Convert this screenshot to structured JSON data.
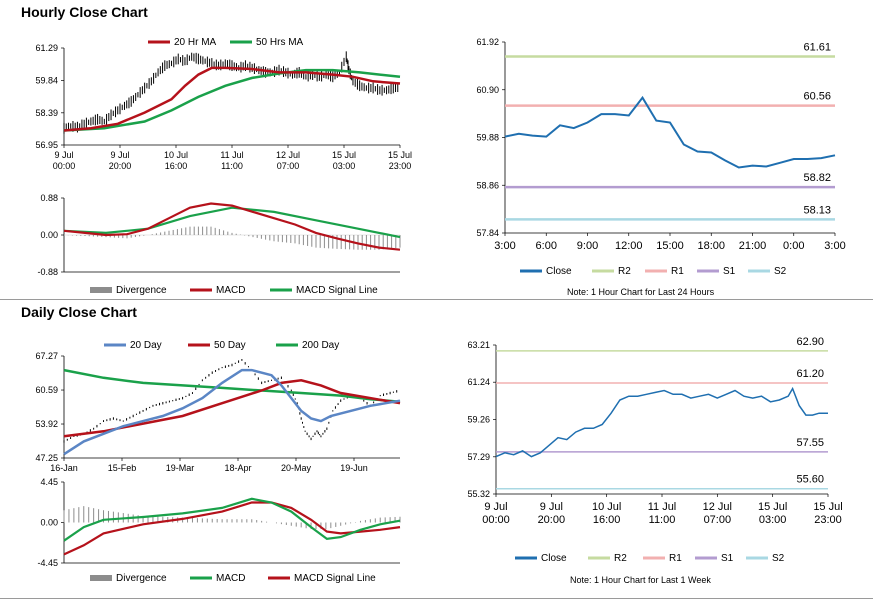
{
  "sections": {
    "hourly_title": "Hourly Close Chart",
    "daily_title": "Daily Close Chart"
  },
  "colors": {
    "ma_short": "#b5121b",
    "ma_long": "#1aa14a",
    "close": "#1f6fb0",
    "ma20_daily": "#5b86c5",
    "r2": "#c6dba0",
    "r1": "#f2b0b0",
    "s1": "#b39cd0",
    "s2": "#a9d8e3",
    "divergence": "#8c8c8c",
    "price": "#000000"
  },
  "chart_data": [
    {
      "id": "hourly-price",
      "type": "line",
      "legend": [
        "20 Hr MA",
        "50 Hrs MA"
      ],
      "legend_position": "top",
      "y_ticks": [
        "61.29",
        "59.84",
        "58.39",
        "56.95"
      ],
      "ylim": [
        56.95,
        61.29
      ],
      "x_ticks": [
        [
          "9 Jul",
          "00:00"
        ],
        [
          "9 Jul",
          "20:00"
        ],
        [
          "10 Jul",
          "16:00"
        ],
        [
          "11 Jul",
          "11:00"
        ],
        [
          "12 Jul",
          "07:00"
        ],
        [
          "15 Jul",
          "03:00"
        ],
        [
          "15 Jul",
          "23:00"
        ]
      ],
      "price": [
        [
          0,
          57.7
        ],
        [
          5,
          57.8
        ],
        [
          10,
          57.75
        ],
        [
          15,
          57.9
        ],
        [
          20,
          58.0
        ],
        [
          25,
          58.1
        ],
        [
          30,
          58.0
        ],
        [
          35,
          58.3
        ],
        [
          40,
          58.5
        ],
        [
          45,
          58.7
        ],
        [
          50,
          58.9
        ],
        [
          55,
          59.2
        ],
        [
          60,
          59.5
        ],
        [
          65,
          59.8
        ],
        [
          70,
          60.2
        ],
        [
          75,
          60.5
        ],
        [
          80,
          60.6
        ],
        [
          85,
          60.8
        ],
        [
          90,
          60.7
        ],
        [
          95,
          60.9
        ],
        [
          100,
          60.8
        ],
        [
          105,
          60.7
        ],
        [
          110,
          60.6
        ],
        [
          115,
          60.5
        ],
        [
          120,
          60.6
        ],
        [
          125,
          60.5
        ],
        [
          130,
          60.4
        ],
        [
          135,
          60.5
        ],
        [
          140,
          60.4
        ],
        [
          145,
          60.3
        ],
        [
          150,
          60.2
        ],
        [
          155,
          60.2
        ],
        [
          160,
          60.3
        ],
        [
          165,
          60.2
        ],
        [
          170,
          60.1
        ],
        [
          175,
          60.2
        ],
        [
          180,
          60.0
        ],
        [
          185,
          60.1
        ],
        [
          190,
          60.0
        ],
        [
          195,
          60.1
        ],
        [
          200,
          60.0
        ],
        [
          205,
          60.2
        ],
        [
          210,
          60.9
        ],
        [
          212,
          60.3
        ],
        [
          215,
          59.8
        ],
        [
          220,
          59.6
        ],
        [
          225,
          59.5
        ],
        [
          230,
          59.5
        ],
        [
          235,
          59.4
        ],
        [
          240,
          59.4
        ],
        [
          245,
          59.5
        ],
        [
          250,
          59.5
        ]
      ],
      "ma20": [
        [
          0,
          57.6
        ],
        [
          20,
          57.7
        ],
        [
          40,
          57.9
        ],
        [
          60,
          58.4
        ],
        [
          80,
          59.0
        ],
        [
          90,
          59.6
        ],
        [
          100,
          60.1
        ],
        [
          110,
          60.4
        ],
        [
          120,
          60.4
        ],
        [
          140,
          60.35
        ],
        [
          160,
          60.2
        ],
        [
          180,
          60.2
        ],
        [
          200,
          60.1
        ],
        [
          215,
          60.0
        ],
        [
          230,
          59.8
        ],
        [
          250,
          59.7
        ]
      ],
      "ma50": [
        [
          0,
          57.6
        ],
        [
          30,
          57.7
        ],
        [
          60,
          58.0
        ],
        [
          80,
          58.5
        ],
        [
          100,
          59.1
        ],
        [
          120,
          59.6
        ],
        [
          140,
          59.95
        ],
        [
          160,
          60.15
        ],
        [
          180,
          60.3
        ],
        [
          200,
          60.3
        ],
        [
          220,
          60.2
        ],
        [
          250,
          60.0
        ]
      ]
    },
    {
      "id": "hourly-macd",
      "type": "line",
      "legend": [
        "Divergence",
        "MACD",
        "MACD Signal Line"
      ],
      "legend_position": "bottom",
      "y_ticks": [
        "0.88",
        "0.00",
        "-0.88"
      ],
      "ylim": [
        -0.88,
        0.88
      ],
      "macd": [
        [
          0,
          0.1
        ],
        [
          20,
          0.05
        ],
        [
          40,
          0.0
        ],
        [
          60,
          0.02
        ],
        [
          80,
          0.15
        ],
        [
          100,
          0.4
        ],
        [
          120,
          0.65
        ],
        [
          140,
          0.75
        ],
        [
          160,
          0.7
        ],
        [
          180,
          0.55
        ],
        [
          200,
          0.4
        ],
        [
          220,
          0.25
        ],
        [
          240,
          0.05
        ],
        [
          260,
          -0.08
        ],
        [
          280,
          -0.2
        ],
        [
          300,
          -0.3
        ],
        [
          320,
          -0.35
        ]
      ],
      "signal": [
        [
          0,
          0.1
        ],
        [
          40,
          0.05
        ],
        [
          80,
          0.15
        ],
        [
          120,
          0.45
        ],
        [
          160,
          0.65
        ],
        [
          200,
          0.55
        ],
        [
          240,
          0.35
        ],
        [
          280,
          0.15
        ],
        [
          320,
          -0.05
        ]
      ]
    },
    {
      "id": "hourly-pivot",
      "type": "line",
      "legend": [
        "Close",
        "R2",
        "R1",
        "S1",
        "S2"
      ],
      "legend_position": "bottom",
      "note": "Note: 1 Hour Chart for Last 24 Hours",
      "y_ticks": [
        "61.92",
        "60.90",
        "59.88",
        "58.86",
        "57.84"
      ],
      "ylim": [
        57.84,
        61.92
      ],
      "x_ticks": [
        "3:00",
        "6:00",
        "9:00",
        "12:00",
        "15:00",
        "18:00",
        "21:00",
        "0:00",
        "3:00"
      ],
      "levels": [
        {
          "name": "R2",
          "value": 61.61,
          "label": "61.61"
        },
        {
          "name": "R1",
          "value": 60.56,
          "label": "60.56"
        },
        {
          "name": "S1",
          "value": 58.82,
          "label": "58.82"
        },
        {
          "name": "S2",
          "value": 58.13,
          "label": "58.13"
        }
      ],
      "close": [
        59.9,
        59.96,
        59.92,
        59.9,
        60.14,
        60.08,
        60.2,
        60.38,
        60.38,
        60.35,
        60.73,
        60.24,
        60.2,
        59.73,
        59.58,
        59.56,
        59.39,
        59.24,
        59.28,
        59.26,
        59.34,
        59.42,
        59.42,
        59.44,
        59.5
      ]
    },
    {
      "id": "daily-price",
      "type": "line",
      "legend": [
        "20 Day",
        "50 Day",
        "200 Day"
      ],
      "legend_position": "top",
      "y_ticks": [
        "67.27",
        "60.59",
        "53.92",
        "47.25"
      ],
      "ylim": [
        47.25,
        67.27
      ],
      "x_ticks": [
        "16-Jan",
        "15-Feb",
        "19-Mar",
        "18-Apr",
        "20-May",
        "19-Jun"
      ],
      "price": [
        [
          0,
          50.5
        ],
        [
          5,
          51.5
        ],
        [
          10,
          52.0
        ],
        [
          15,
          53.0
        ],
        [
          20,
          54.5
        ],
        [
          25,
          55.0
        ],
        [
          30,
          54.5
        ],
        [
          35,
          55.5
        ],
        [
          40,
          56.5
        ],
        [
          45,
          57.5
        ],
        [
          50,
          58.0
        ],
        [
          55,
          58.5
        ],
        [
          60,
          59.0
        ],
        [
          65,
          60.0
        ],
        [
          70,
          62.5
        ],
        [
          75,
          64.0
        ],
        [
          80,
          65.0
        ],
        [
          85,
          65.5
        ],
        [
          90,
          66.5
        ],
        [
          95,
          64.5
        ],
        [
          100,
          62.0
        ],
        [
          105,
          62.5
        ],
        [
          110,
          63.0
        ],
        [
          115,
          60.5
        ],
        [
          118,
          58.0
        ],
        [
          120,
          55.0
        ],
        [
          122,
          52.5
        ],
        [
          125,
          51.0
        ],
        [
          128,
          52.5
        ],
        [
          130,
          51.5
        ],
        [
          133,
          53.0
        ],
        [
          136,
          56.5
        ],
        [
          140,
          58.5
        ],
        [
          145,
          59.5
        ],
        [
          150,
          59.0
        ],
        [
          155,
          57.5
        ],
        [
          160,
          59.5
        ],
        [
          165,
          60.0
        ],
        [
          170,
          60.5
        ]
      ],
      "ma20": [
        [
          0,
          48.0
        ],
        [
          10,
          50.5
        ],
        [
          20,
          52.0
        ],
        [
          30,
          53.5
        ],
        [
          40,
          54.5
        ],
        [
          50,
          55.5
        ],
        [
          60,
          57.0
        ],
        [
          70,
          59.0
        ],
        [
          80,
          62.0
        ],
        [
          90,
          64.5
        ],
        [
          95,
          64.5
        ],
        [
          105,
          63.5
        ],
        [
          110,
          61.5
        ],
        [
          115,
          59.0
        ],
        [
          120,
          56.5
        ],
        [
          125,
          55.0
        ],
        [
          130,
          54.5
        ],
        [
          135,
          55.5
        ],
        [
          145,
          56.5
        ],
        [
          155,
          57.5
        ],
        [
          170,
          58.5
        ]
      ],
      "ma50": [
        [
          0,
          51.5
        ],
        [
          20,
          52.5
        ],
        [
          40,
          54.0
        ],
        [
          60,
          55.5
        ],
        [
          80,
          58.0
        ],
        [
          100,
          60.5
        ],
        [
          110,
          62.0
        ],
        [
          120,
          62.5
        ],
        [
          130,
          61.5
        ],
        [
          140,
          60.0
        ],
        [
          155,
          59.0
        ],
        [
          170,
          58.0
        ]
      ],
      "ma200": [
        [
          0,
          64.5
        ],
        [
          20,
          63.0
        ],
        [
          40,
          62.0
        ],
        [
          60,
          61.5
        ],
        [
          80,
          61.0
        ],
        [
          100,
          60.5
        ],
        [
          120,
          60.0
        ],
        [
          140,
          59.5
        ],
        [
          155,
          58.8
        ],
        [
          170,
          58.3
        ]
      ]
    },
    {
      "id": "daily-macd",
      "type": "line",
      "legend": [
        "Divergence",
        "MACD",
        "MACD Signal Line"
      ],
      "legend_position": "bottom",
      "y_ticks": [
        "4.45",
        "0.00",
        "-4.45"
      ],
      "ylim": [
        -4.45,
        4.45
      ],
      "macd": [
        [
          0,
          -2.0
        ],
        [
          10,
          -0.5
        ],
        [
          20,
          0.3
        ],
        [
          40,
          0.6
        ],
        [
          60,
          1.0
        ],
        [
          80,
          1.6
        ],
        [
          95,
          2.6
        ],
        [
          105,
          2.2
        ],
        [
          115,
          1.2
        ],
        [
          125,
          -0.5
        ],
        [
          133,
          -1.8
        ],
        [
          140,
          -1.6
        ],
        [
          150,
          -0.8
        ],
        [
          160,
          -0.2
        ],
        [
          170,
          0.2
        ]
      ],
      "signal": [
        [
          0,
          -3.5
        ],
        [
          10,
          -2.5
        ],
        [
          20,
          -1.2
        ],
        [
          40,
          -0.2
        ],
        [
          60,
          0.4
        ],
        [
          80,
          1.2
        ],
        [
          95,
          2.2
        ],
        [
          105,
          2.2
        ],
        [
          115,
          1.6
        ],
        [
          125,
          0.3
        ],
        [
          133,
          -1.0
        ],
        [
          140,
          -1.2
        ],
        [
          150,
          -1.0
        ],
        [
          160,
          -0.8
        ],
        [
          170,
          -0.5
        ]
      ]
    },
    {
      "id": "daily-pivot",
      "type": "line",
      "legend": [
        "Close",
        "R2",
        "R1",
        "S1",
        "S2"
      ],
      "legend_position": "bottom",
      "note": "Note: 1 Hour Chart for Last 1 Week",
      "y_ticks": [
        "63.21",
        "61.24",
        "59.26",
        "57.29",
        "55.32"
      ],
      "ylim": [
        55.32,
        63.21
      ],
      "x_ticks": [
        [
          "9 Jul",
          "00:00"
        ],
        [
          "9 Jul",
          "20:00"
        ],
        [
          "10 Jul",
          "16:00"
        ],
        [
          "11 Jul",
          "11:00"
        ],
        [
          "12 Jul",
          "07:00"
        ],
        [
          "15 Jul",
          "03:00"
        ],
        [
          "15 Jul",
          "23:00"
        ]
      ],
      "levels": [
        {
          "name": "R2",
          "value": 62.9,
          "label": "62.90"
        },
        {
          "name": "R1",
          "value": 61.2,
          "label": "61.20"
        },
        {
          "name": "S1",
          "value": 57.55,
          "label": "57.55"
        },
        {
          "name": "S2",
          "value": 55.6,
          "label": "55.60"
        }
      ],
      "close": [
        [
          0,
          57.3
        ],
        [
          4,
          57.5
        ],
        [
          8,
          57.4
        ],
        [
          12,
          57.6
        ],
        [
          16,
          57.3
        ],
        [
          20,
          57.5
        ],
        [
          24,
          57.9
        ],
        [
          28,
          58.3
        ],
        [
          32,
          58.2
        ],
        [
          36,
          58.6
        ],
        [
          40,
          58.8
        ],
        [
          44,
          58.8
        ],
        [
          48,
          59.0
        ],
        [
          52,
          59.6
        ],
        [
          56,
          60.3
        ],
        [
          60,
          60.5
        ],
        [
          64,
          60.5
        ],
        [
          68,
          60.6
        ],
        [
          72,
          60.7
        ],
        [
          76,
          60.8
        ],
        [
          80,
          60.6
        ],
        [
          84,
          60.6
        ],
        [
          88,
          60.4
        ],
        [
          92,
          60.5
        ],
        [
          96,
          60.6
        ],
        [
          100,
          60.4
        ],
        [
          104,
          60.6
        ],
        [
          108,
          60.8
        ],
        [
          112,
          60.5
        ],
        [
          116,
          60.4
        ],
        [
          120,
          60.5
        ],
        [
          124,
          60.2
        ],
        [
          128,
          60.3
        ],
        [
          132,
          60.5
        ],
        [
          134,
          60.9
        ],
        [
          137,
          60.0
        ],
        [
          140,
          59.5
        ],
        [
          143,
          59.5
        ],
        [
          146,
          59.6
        ],
        [
          150,
          59.6
        ]
      ]
    }
  ]
}
